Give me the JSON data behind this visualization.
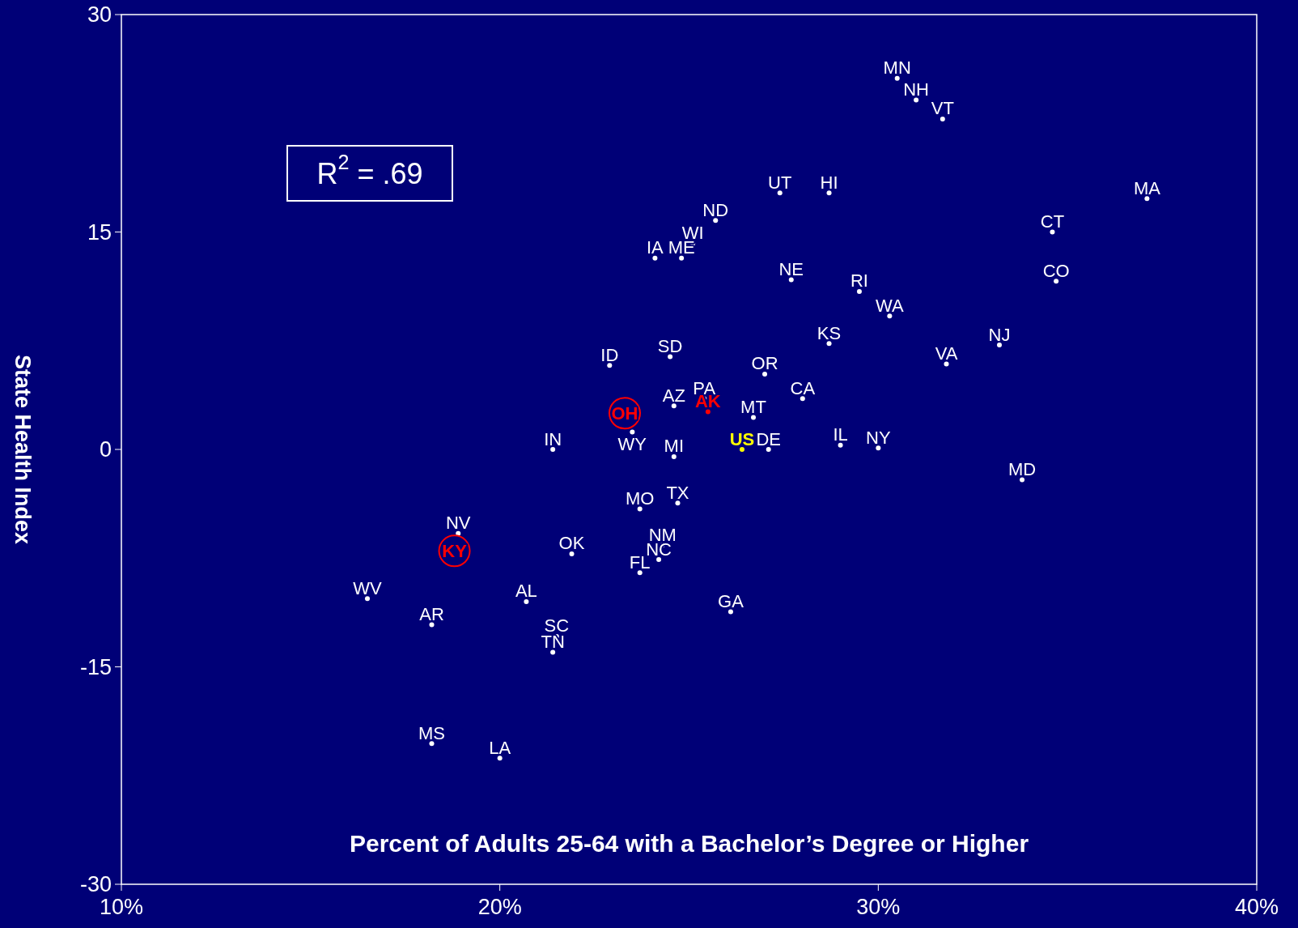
{
  "chart_data": {
    "type": "scatter",
    "xlabel": "Percent of Adults 25-64 with a Bachelor’s Degree or Higher",
    "ylabel": "State Health Index",
    "annotations": [
      "R$^{2}$ = .69"
    ],
    "xlim": [
      10,
      40
    ],
    "ylim": [
      -30,
      30
    ],
    "xticks": [
      {
        "value": 10,
        "label": "10%"
      },
      {
        "value": 20,
        "label": "20%"
      },
      {
        "value": 30,
        "label": "30%"
      },
      {
        "value": 40,
        "label": "40%"
      }
    ],
    "yticks": [
      30,
      15,
      0,
      -15,
      -30
    ],
    "grid": false,
    "series": [
      {
        "color": "#ffffff",
        "marker": "circle",
        "x": [
          30.5,
          31.0,
          31.7,
          27.4,
          28.7,
          37.1,
          25.7,
          34.6,
          25.1,
          24.1,
          24.8,
          27.7,
          34.7,
          29.5,
          30.3,
          28.7,
          33.2,
          24.5,
          22.9,
          31.8,
          27.0,
          28.0,
          25.4,
          24.6,
          26.7,
          23.5,
          21.4,
          27.1,
          29.0,
          30.0,
          24.6,
          33.8,
          23.7,
          24.7,
          18.9,
          24.3,
          21.9,
          24.2,
          23.7,
          16.5,
          20.7,
          26.1,
          18.2,
          21.5,
          21.4,
          18.2,
          20.0
        ],
        "values": [
          25.6,
          24.1,
          22.8,
          17.7,
          17.7,
          17.3,
          15.8,
          15.0,
          14.2,
          13.2,
          13.2,
          11.7,
          11.6,
          10.9,
          9.2,
          7.3,
          7.2,
          6.4,
          5.8,
          5.9,
          5.2,
          3.5,
          3.5,
          3.0,
          2.2,
          1.2,
          0.0,
          0.0,
          0.3,
          0.1,
          -0.5,
          -2.1,
          -4.1,
          -3.7,
          -5.8,
          -6.6,
          -7.2,
          -7.6,
          -8.5,
          -10.3,
          -10.5,
          -11.2,
          -12.1,
          -12.9,
          -14.0,
          -20.3,
          -21.3
        ],
        "value_labels": [
          "MN",
          "NH",
          "VT",
          "UT",
          "HI",
          "MA",
          "ND",
          "CT",
          "WI",
          "IA",
          "ME",
          "NE",
          "CO",
          "RI",
          "WA",
          "KS",
          "NJ",
          "SD",
          "ID",
          "VA",
          "OR",
          "CA",
          "PA",
          "AZ",
          "MT",
          "WY",
          "IN",
          "DE",
          "IL",
          "NY",
          "MI",
          "MD",
          "MO",
          "TX",
          "NV",
          "NM",
          "OK",
          "NC",
          "FL",
          "WV",
          "AL",
          "GA",
          "AR",
          "SC",
          "TN",
          "MS",
          "LA"
        ]
      },
      {
        "type": "bubble",
        "color": "#ff0000",
        "sizes": [
          1,
          1
        ],
        "x": [
          23.3,
          18.8
        ],
        "values": [
          2.5,
          -7.0
        ],
        "value_labels": [
          "OH",
          "KY"
        ]
      },
      {
        "color": "#ff0000",
        "marker": "circle",
        "x": [
          25.5
        ],
        "values": [
          2.6
        ],
        "value_labels": [
          "AK"
        ]
      },
      {
        "color": "#ffff00",
        "marker": "circle",
        "x": [
          26.4
        ],
        "values": [
          0.0
        ],
        "value_labels": [
          "US"
        ]
      }
    ]
  }
}
